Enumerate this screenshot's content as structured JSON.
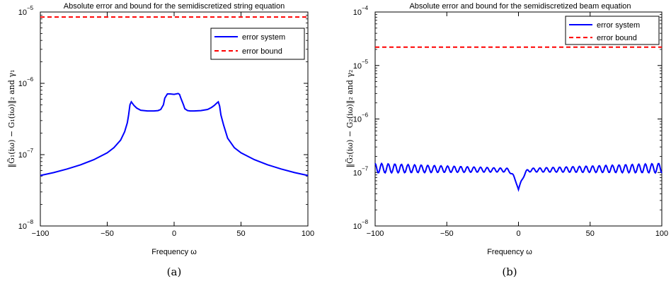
{
  "chart_data": [
    {
      "type": "line",
      "title": "Absolute error and bound for the semidiscretized string equation",
      "xlabel": "Frequency ω",
      "ylabel": "‖G̃₁(iω) − G₁(iω)‖₂ and γ₁",
      "xlim": [
        -100,
        100
      ],
      "ylim": [
        1e-08,
        1e-05
      ],
      "yscale": "log",
      "x_ticks": [
        "−100",
        "−50",
        "0",
        "50",
        "100"
      ],
      "y_ticks": [
        "10",
        "10",
        "10",
        "10"
      ],
      "y_tick_exponents": [
        "−8",
        "−7",
        "−6",
        "−5"
      ],
      "legend_position": "top-right",
      "caption": "(a)",
      "series": [
        {
          "name": "error system",
          "color": "#0000ff",
          "style": "solid",
          "x": [
            -100,
            -90,
            -80,
            -70,
            -60,
            -50,
            -45,
            -40,
            -37,
            -35,
            -34,
            -33,
            -32,
            -30,
            -28,
            -25,
            -20,
            -15,
            -12,
            -10,
            -8,
            -7,
            -5,
            -3,
            0,
            3,
            4,
            5,
            7,
            8,
            10,
            12,
            15,
            20,
            25,
            28,
            30,
            32,
            33,
            34,
            35,
            37,
            40,
            45,
            50,
            60,
            70,
            80,
            90,
            100
          ],
          "y": [
            5.1e-08,
            5.6e-08,
            6.3e-08,
            7.2e-08,
            8.5e-08,
            1.06e-07,
            1.25e-07,
            1.6e-07,
            2.1e-07,
            2.8e-07,
            3.6e-07,
            5e-07,
            5.5e-07,
            4.9e-07,
            4.5e-07,
            4.2e-07,
            4.1e-07,
            4.1e-07,
            4.15e-07,
            4.3e-07,
            5e-07,
            6.2e-07,
            7.1e-07,
            7.1e-07,
            7e-07,
            7.2e-07,
            7e-07,
            6.2e-07,
            5e-07,
            4.4e-07,
            4.15e-07,
            4.1e-07,
            4.1e-07,
            4.15e-07,
            4.3e-07,
            4.6e-07,
            4.9e-07,
            5.3e-07,
            5.5e-07,
            4.8e-07,
            3.6e-07,
            2.6e-07,
            1.7e-07,
            1.25e-07,
            1.06e-07,
            8.5e-08,
            7.2e-08,
            6.3e-08,
            5.6e-08,
            5.1e-08
          ]
        },
        {
          "name": "error bound",
          "color": "#ff0000",
          "style": "dashed",
          "x": [
            -100,
            100
          ],
          "y": [
            8.5e-06,
            8.5e-06
          ]
        }
      ]
    },
    {
      "type": "line",
      "title": "Absolute error and bound for the semidiscretized beam equation",
      "xlabel": "Frequency ω",
      "ylabel": "‖G̃₂(iω) − G₂(iω)‖₂ and γ₂",
      "xlim": [
        -100,
        100
      ],
      "ylim": [
        1e-08,
        0.0001
      ],
      "yscale": "log",
      "x_ticks": [
        "−100",
        "−50",
        "0",
        "50",
        "100"
      ],
      "y_ticks": [
        "10",
        "10",
        "10",
        "10",
        "10"
      ],
      "y_tick_exponents": [
        "−8",
        "−7",
        "−6",
        "−5",
        "−4"
      ],
      "legend_position": "top-right",
      "caption": "(b)",
      "series": [
        {
          "name": "error system",
          "color": "#0000ff",
          "style": "solid",
          "oscillation": {
            "period": 4.6,
            "amplitude_at_edges": 0.09,
            "amplitude_near_zero": 0.03,
            "base_level": 1.1e-07,
            "dip_at_zero": 4.8e-08
          }
        },
        {
          "name": "error bound",
          "color": "#ff0000",
          "style": "dashed",
          "x": [
            -100,
            100
          ],
          "y": [
            2.2e-05,
            2.2e-05
          ]
        }
      ]
    }
  ]
}
